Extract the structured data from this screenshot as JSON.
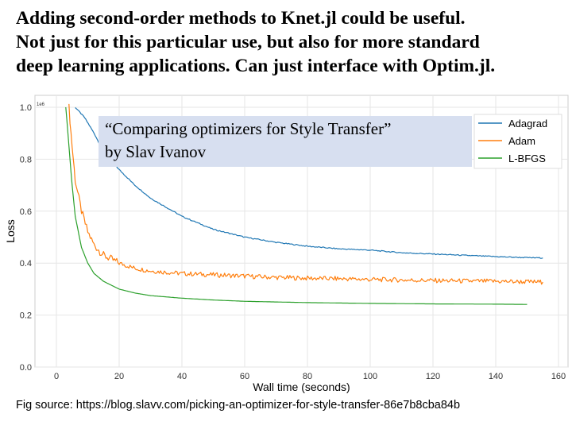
{
  "slide": {
    "heading_lines": [
      "Adding second-order methods to Knet.jl could be useful.",
      "Not just for this particular use, but also for more standard",
      "deep learning applications. Can just interface with Optim.jl."
    ],
    "caption_lines": [
      "“Comparing optimizers for Style Transfer”",
      "by Slav Ivanov"
    ],
    "source": "Fig source: https://blog.slavv.com/picking-an-optimizer-for-style-transfer-86e7b8cba84b"
  },
  "chart_data": {
    "type": "line",
    "xlabel": "Wall time (seconds)",
    "ylabel": "Loss",
    "scale_note": "1e6",
    "xlim": [
      -10,
      160
    ],
    "ylim": [
      0,
      1.0
    ],
    "xticks": [
      0,
      20,
      40,
      60,
      80,
      100,
      120,
      140,
      160
    ],
    "xtick_labels": [
      "0",
      "20",
      "40",
      "60",
      "80",
      "100",
      "120",
      "140",
      "160"
    ],
    "yticks": [
      0,
      0.2,
      0.4,
      0.6,
      0.8,
      1.0
    ],
    "ytick_labels": [
      "0.0",
      "0.2",
      "0.4",
      "0.6",
      "0.8",
      "1.0"
    ],
    "grid": true,
    "legend_position": "top-right",
    "series": [
      {
        "name": "Adagrad",
        "color": "#1f77b4",
        "x": [
          6,
          9,
          12,
          15,
          20,
          25,
          30,
          40,
          50,
          60,
          70,
          80,
          90,
          100,
          110,
          120,
          130,
          140,
          150,
          155
        ],
        "y": [
          1.0,
          0.96,
          0.9,
          0.83,
          0.76,
          0.7,
          0.65,
          0.58,
          0.53,
          0.5,
          0.48,
          0.465,
          0.455,
          0.45,
          0.44,
          0.435,
          0.43,
          0.425,
          0.421,
          0.42
        ]
      },
      {
        "name": "Adam",
        "color": "#ff7f0e",
        "x": [
          4,
          5,
          6,
          8,
          10,
          12,
          15,
          20,
          25,
          30,
          40,
          50,
          60,
          70,
          80,
          90,
          100,
          110,
          120,
          130,
          140,
          150,
          155
        ],
        "y": [
          1.0,
          0.85,
          0.72,
          0.6,
          0.52,
          0.47,
          0.43,
          0.4,
          0.38,
          0.37,
          0.36,
          0.355,
          0.35,
          0.345,
          0.342,
          0.34,
          0.337,
          0.335,
          0.333,
          0.331,
          0.33,
          0.328,
          0.327
        ]
      },
      {
        "name": "L-BFGS",
        "color": "#2ca02c",
        "x": [
          3,
          4,
          5,
          6,
          8,
          10,
          12,
          15,
          20,
          25,
          30,
          40,
          50,
          60,
          80,
          100,
          120,
          140,
          150
        ],
        "y": [
          1.0,
          0.85,
          0.7,
          0.58,
          0.46,
          0.4,
          0.36,
          0.33,
          0.3,
          0.285,
          0.275,
          0.265,
          0.258,
          0.253,
          0.248,
          0.245,
          0.243,
          0.242,
          0.241
        ]
      }
    ]
  }
}
